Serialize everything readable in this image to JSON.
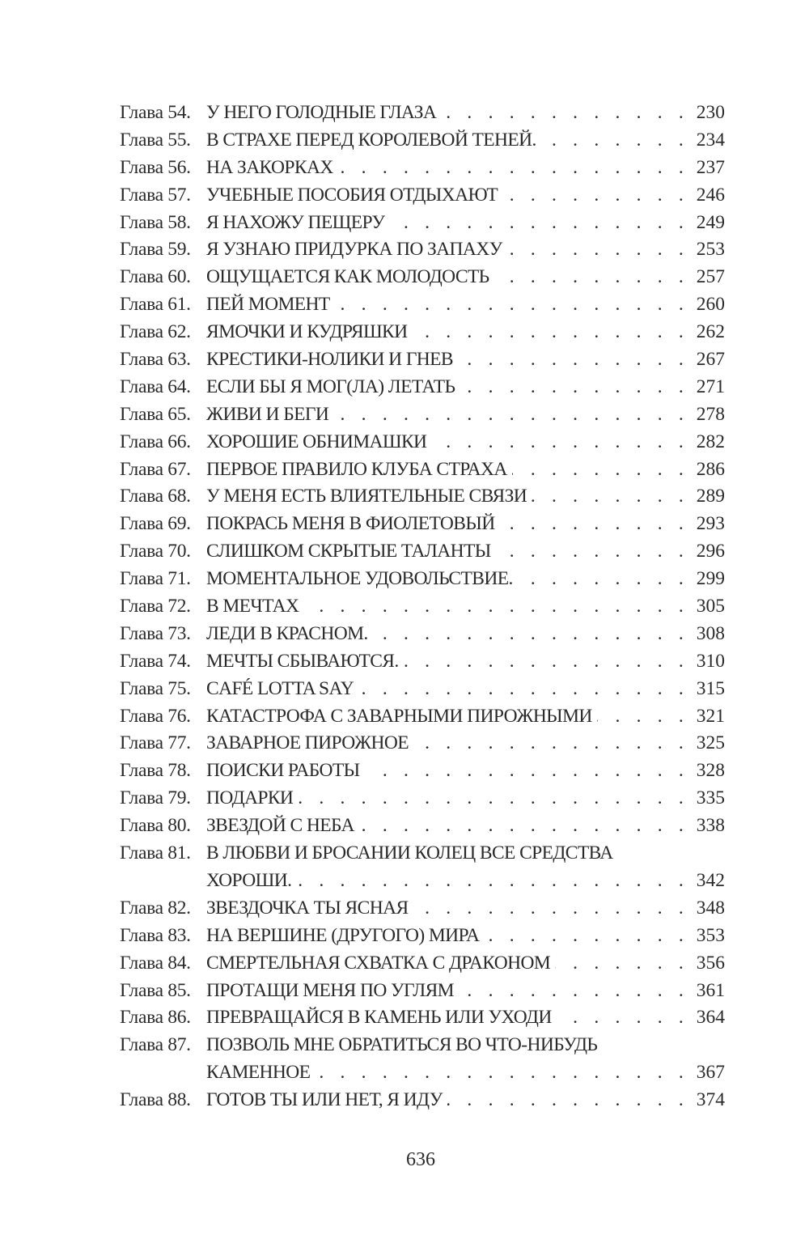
{
  "chapter_prefix": "Глава",
  "entries": [
    {
      "num": "54",
      "title": "У НЕГО ГОЛОДНЫЕ ГЛАЗА",
      "page": "230"
    },
    {
      "num": "55",
      "title": "В СТРАХЕ ПЕРЕД КОРОЛЕВОЙ ТЕНЕЙ.",
      "page": "234"
    },
    {
      "num": "56",
      "title": "НА ЗАКОРКАХ",
      "page": "237"
    },
    {
      "num": "57",
      "title": "УЧЕБНЫЕ ПОСОБИЯ ОТДЫХАЮТ",
      "page": "246"
    },
    {
      "num": "58",
      "title": "Я НАХОЖУ ПЕЩЕРУ",
      "page": "249"
    },
    {
      "num": "59",
      "title": "Я УЗНАЮ ПРИДУРКА ПО ЗАПАХУ",
      "page": "253"
    },
    {
      "num": "60",
      "title": "ОЩУЩАЕТСЯ КАК МОЛОДОСТЬ",
      "page": "257"
    },
    {
      "num": "61",
      "title": "ПЕЙ МОМЕНТ",
      "page": "260"
    },
    {
      "num": "62",
      "title": "ЯМОЧКИ И КУДРЯШКИ",
      "page": "262"
    },
    {
      "num": "63",
      "title": "КРЕСТИКИ-НОЛИКИ И ГНЕВ",
      "page": "267"
    },
    {
      "num": "64",
      "title": "ЕСЛИ БЫ Я МОГ(ЛА) ЛЕТАТЬ",
      "page": "271"
    },
    {
      "num": "65",
      "title": "ЖИВИ И БЕГИ",
      "page": "278"
    },
    {
      "num": "66",
      "title": "ХОРОШИЕ ОБНИМАШКИ",
      "page": "282"
    },
    {
      "num": "67",
      "title": "ПЕРВОЕ ПРАВИЛО КЛУБА СТРАХА",
      "page": "286"
    },
    {
      "num": "68",
      "title": "У МЕНЯ ЕСТЬ ВЛИЯТЕЛЬНЫЕ СВЯЗИ",
      "page": "289"
    },
    {
      "num": "69",
      "title": "ПОКРАСЬ МЕНЯ В ФИОЛЕТОВЫЙ",
      "page": "293"
    },
    {
      "num": "70",
      "title": "СЛИШКОМ СКРЫТЫЕ ТАЛАНТЫ",
      "page": "296"
    },
    {
      "num": "71",
      "title": "МОМЕНТАЛЬНОЕ УДОВОЛЬСТВИЕ.",
      "page": "299"
    },
    {
      "num": "72",
      "title": "В МЕЧТАХ",
      "page": "305"
    },
    {
      "num": "73",
      "title": "ЛЕДИ В КРАСНОМ.",
      "page": "308"
    },
    {
      "num": "74",
      "title": "МЕЧТЫ СБЫВАЮТСЯ.",
      "page": "310"
    },
    {
      "num": "75",
      "title": "CAFÉ LOTTA SAY",
      "page": "315"
    },
    {
      "num": "76",
      "title": "КАТАСТРОФА С ЗАВАРНЫМИ ПИРОЖНЫМИ",
      "page": "321"
    },
    {
      "num": "77",
      "title": "ЗАВАРНОЕ ПИРОЖНОЕ",
      "page": "325"
    },
    {
      "num": "78",
      "title": "ПОИСКИ РАБОТЫ",
      "page": "328"
    },
    {
      "num": "79",
      "title": "ПОДАРКИ",
      "page": "335"
    },
    {
      "num": "80",
      "title": "ЗВЕЗДОЙ С НЕБА",
      "page": "338"
    },
    {
      "num": "81",
      "title": "В ЛЮБВИ И БРОСАНИИ КОЛЕЦ ВСЕ СРЕДСТВА",
      "title_cont": "ХОРОШИ.",
      "page": "342"
    },
    {
      "num": "82",
      "title": "ЗВЕЗДОЧКА ТЫ ЯСНАЯ",
      "page": "348"
    },
    {
      "num": "83",
      "title": "НА ВЕРШИНЕ (ДРУГОГО) МИРА",
      "page": "353"
    },
    {
      "num": "84",
      "title": "СМЕРТЕЛЬНАЯ СХВАТКА С ДРАКОНОМ",
      "page": "356"
    },
    {
      "num": "85",
      "title": "ПРОТАЩИ МЕНЯ ПО УГЛЯМ",
      "page": "361"
    },
    {
      "num": "86",
      "title": "ПРЕВРАЩАЙСЯ В КАМЕНЬ ИЛИ УХОДИ",
      "page": "364"
    },
    {
      "num": "87",
      "title": "ПОЗВОЛЬ МНЕ ОБРАТИТЬСЯ ВО ЧТО-НИБУДЬ",
      "title_cont": "КАМЕННОЕ",
      "page": "367"
    },
    {
      "num": "88",
      "title": "ГОТОВ ТЫ ИЛИ НЕТ, Я ИДУ",
      "page": "374"
    }
  ],
  "folio": "636"
}
